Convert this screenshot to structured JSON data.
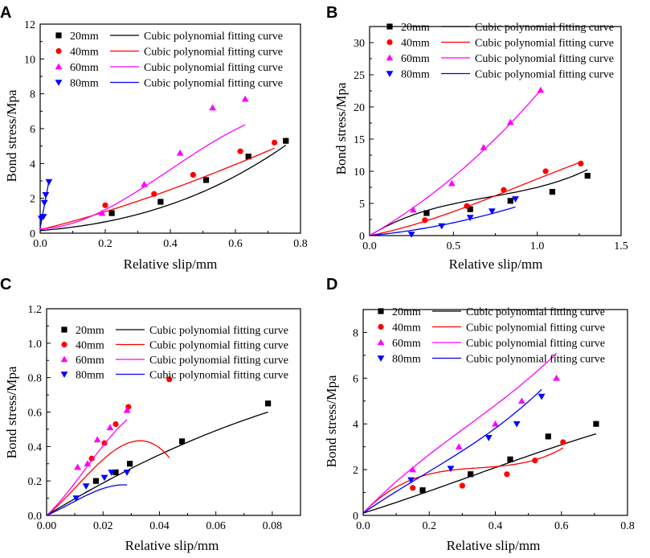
{
  "chart_data": [
    {
      "panel": "A",
      "type": "scatter",
      "xlabel": "Relative slip/mm",
      "ylabel": "Bond stress/Mpa",
      "xlim": [
        0,
        0.8
      ],
      "ylim": [
        0,
        12
      ],
      "xticks": [
        "0.0",
        "0.2",
        "0.4",
        "0.6",
        "0.8"
      ],
      "yticks": [
        "0",
        "2",
        "4",
        "6",
        "8",
        "10",
        "12"
      ],
      "legend_position": "top-right",
      "series": [
        {
          "name": "20mm",
          "fit_label": "Cubic polynomial fitting curve",
          "color": "#000000",
          "marker": "square",
          "points": [
            [
              0.22,
              1.15
            ],
            [
              0.37,
              1.8
            ],
            [
              0.51,
              3.05
            ],
            [
              0.64,
              4.4
            ],
            [
              0.755,
              5.3
            ]
          ],
          "fit": [
            0.15,
            1.5,
            4.5,
            2.8
          ]
        },
        {
          "name": "40mm",
          "fit_label": "Cubic polynomial fitting curve",
          "color": "#ff0000",
          "marker": "circle",
          "points": [
            [
              0.2,
              1.6
            ],
            [
              0.35,
              2.25
            ],
            [
              0.47,
              3.35
            ],
            [
              0.615,
              4.7
            ],
            [
              0.72,
              5.2
            ]
          ],
          "fit": [
            0.2,
            4.5,
            3.5,
            -1.0
          ]
        },
        {
          "name": "60mm",
          "fit_label": "Cubic polynomial fitting curve",
          "color": "#ff00ff",
          "marker": "triangle-up",
          "points": [
            [
              0.19,
              1.15
            ],
            [
              0.32,
              2.8
            ],
            [
              0.43,
              4.6
            ],
            [
              0.53,
              7.2
            ],
            [
              0.63,
              7.7
            ]
          ],
          "fit": [
            0.25,
            0.5,
            30,
            -25
          ]
        },
        {
          "name": "80mm",
          "fit_label": "Cubic polynomial fitting curve",
          "color": "#0000ff",
          "marker": "triangle-down",
          "points": [
            [
              0.003,
              0.85
            ],
            [
              0.01,
              0.95
            ],
            [
              0.013,
              1.75
            ],
            [
              0.017,
              2.2
            ],
            [
              0.027,
              2.95
            ]
          ],
          "fit": [
            0.3,
            100,
            0,
            0
          ]
        }
      ]
    },
    {
      "panel": "B",
      "type": "scatter",
      "xlabel": "Relative slip/mm",
      "ylabel": "Bond stress/Mpa",
      "xlim": [
        0,
        1.5
      ],
      "ylim": [
        0,
        32.5
      ],
      "xticks": [
        "0.0",
        "0.5",
        "1.0",
        "1.5"
      ],
      "yticks": [
        "0",
        "5",
        "10",
        "15",
        "20",
        "25",
        "30"
      ],
      "legend_position": "top-right",
      "series": [
        {
          "name": "20mm",
          "fit_label": "Cubic polynomial fitting curve",
          "color": "#000000",
          "marker": "square",
          "points": [
            [
              0.34,
              3.5
            ],
            [
              0.6,
              4.1
            ],
            [
              0.84,
              5.4
            ],
            [
              1.09,
              6.8
            ],
            [
              1.3,
              9.3
            ]
          ],
          "fit": [
            0,
            16,
            -16,
            7.5
          ]
        },
        {
          "name": "40mm",
          "fit_label": "Cubic polynomial fitting curve",
          "color": "#ff0000",
          "marker": "circle",
          "points": [
            [
              0.33,
              2.4
            ],
            [
              0.58,
              4.6
            ],
            [
              0.8,
              7.1
            ],
            [
              1.05,
              10.0
            ],
            [
              1.26,
              11.2
            ]
          ],
          "fit": [
            0,
            5,
            6,
            -2.2
          ]
        },
        {
          "name": "60mm",
          "fit_label": "Cubic polynomial fitting curve",
          "color": "#ff00ff",
          "marker": "triangle-up",
          "points": [
            [
              0.26,
              4.0
            ],
            [
              0.49,
              8.1
            ],
            [
              0.68,
              13.7
            ],
            [
              0.84,
              17.6
            ],
            [
              1.02,
              22.6
            ]
          ],
          "fit": [
            0,
            15,
            6,
            1.0
          ]
        },
        {
          "name": "80mm",
          "fit_label": "Cubic polynomial fitting curve",
          "color": "#0000ff",
          "marker": "triangle-down",
          "points": [
            [
              0.25,
              0.2
            ],
            [
              0.43,
              1.5
            ],
            [
              0.6,
              2.8
            ],
            [
              0.73,
              3.8
            ],
            [
              0.87,
              5.7
            ]
          ],
          "fit": [
            0,
            2.5,
            3,
            0
          ]
        }
      ]
    },
    {
      "panel": "C",
      "type": "scatter",
      "xlabel": "Relative slip/mm",
      "ylabel": "Bond stress/Mpa",
      "xlim": [
        0,
        0.09
      ],
      "ylim": [
        0,
        1.2
      ],
      "xticks": [
        "0.00",
        "0.02",
        "0.04",
        "0.06",
        "0.08"
      ],
      "yticks": [
        "0.0",
        "0.2",
        "0.4",
        "0.6",
        "0.8",
        "1.0",
        "1.2"
      ],
      "legend_position": "top-right",
      "series": [
        {
          "name": "20mm",
          "fit_label": "Cubic polynomial fitting curve",
          "color": "#000000",
          "marker": "square",
          "points": [
            [
              0.0175,
              0.2
            ],
            [
              0.0245,
              0.25
            ],
            [
              0.0295,
              0.3
            ],
            [
              0.048,
              0.43
            ],
            [
              0.0785,
              0.65
            ]
          ],
          "fit": [
            0,
            10,
            -30,
            0
          ]
        },
        {
          "name": "40mm",
          "fit_label": "Cubic polynomial fitting curve",
          "color": "#ff0000",
          "marker": "circle",
          "points": [
            [
              0.016,
              0.33
            ],
            [
              0.0205,
              0.42
            ],
            [
              0.0245,
              0.53
            ],
            [
              0.029,
              0.63
            ],
            [
              0.0435,
              0.79
            ]
          ],
          "fit": [
            0,
            13,
            400,
            -12000
          ]
        },
        {
          "name": "60mm",
          "fit_label": "Cubic polynomial fitting curve",
          "color": "#ff00ff",
          "marker": "triangle-up",
          "points": [
            [
              0.011,
              0.28
            ],
            [
              0.0145,
              0.3
            ],
            [
              0.018,
              0.44
            ],
            [
              0.0225,
              0.51
            ],
            [
              0.0285,
              0.61
            ]
          ],
          "fit": [
            0,
            15,
            500,
            -12000
          ]
        },
        {
          "name": "80mm",
          "fit_label": "Cubic polynomial fitting curve",
          "color": "#0000ff",
          "marker": "triangle-down",
          "points": [
            [
              0.0105,
              0.1
            ],
            [
              0.014,
              0.17
            ],
            [
              0.0205,
              0.22
            ],
            [
              0.023,
              0.25
            ],
            [
              0.0285,
              0.25
            ]
          ],
          "fit": [
            0,
            7,
            200,
            -8000
          ]
        }
      ]
    },
    {
      "panel": "D",
      "type": "scatter",
      "xlabel": "Relative slip/mm",
      "ylabel": "Bond stress/Mpa",
      "xlim": [
        0,
        0.8
      ],
      "ylim": [
        0,
        9
      ],
      "xticks": [
        "0.0",
        "0.2",
        "0.4",
        "0.6",
        "0.8"
      ],
      "yticks": [
        "0",
        "2",
        "4",
        "6",
        "8"
      ],
      "legend_position": "top-right",
      "series": [
        {
          "name": "20mm",
          "fit_label": "Cubic polynomial fitting curve",
          "color": "#000000",
          "marker": "square",
          "points": [
            [
              0.18,
              1.1
            ],
            [
              0.325,
              1.8
            ],
            [
              0.445,
              2.45
            ],
            [
              0.56,
              3.45
            ],
            [
              0.705,
              4.0
            ]
          ],
          "fit": [
            0.1,
            4.5,
            2,
            -2
          ]
        },
        {
          "name": "40mm",
          "fit_label": "Cubic polynomial fitting curve",
          "color": "#ff0000",
          "marker": "circle",
          "points": [
            [
              0.15,
              1.2
            ],
            [
              0.3,
              1.3
            ],
            [
              0.435,
              1.8
            ],
            [
              0.52,
              2.4
            ],
            [
              0.605,
              3.2
            ]
          ],
          "fit": [
            0.1,
            15,
            -40,
            38
          ]
        },
        {
          "name": "60mm",
          "fit_label": "Cubic polynomial fitting curve",
          "color": "#ff00ff",
          "marker": "triangle-up",
          "points": [
            [
              0.15,
              2.0
            ],
            [
              0.29,
              3.0
            ],
            [
              0.4,
              4.0
            ],
            [
              0.48,
              5.0
            ],
            [
              0.585,
              6.0
            ]
          ],
          "fit": [
            0.1,
            15,
            -14,
            15
          ]
        },
        {
          "name": "80mm",
          "fit_label": "Cubic polynomial fitting curve",
          "color": "#0000ff",
          "marker": "triangle-down",
          "points": [
            [
              0.145,
              1.55
            ],
            [
              0.265,
              2.05
            ],
            [
              0.38,
              3.4
            ],
            [
              0.465,
              4.0
            ],
            [
              0.54,
              5.2
            ]
          ],
          "fit": [
            0.1,
            10,
            -7,
            13
          ]
        }
      ]
    }
  ]
}
